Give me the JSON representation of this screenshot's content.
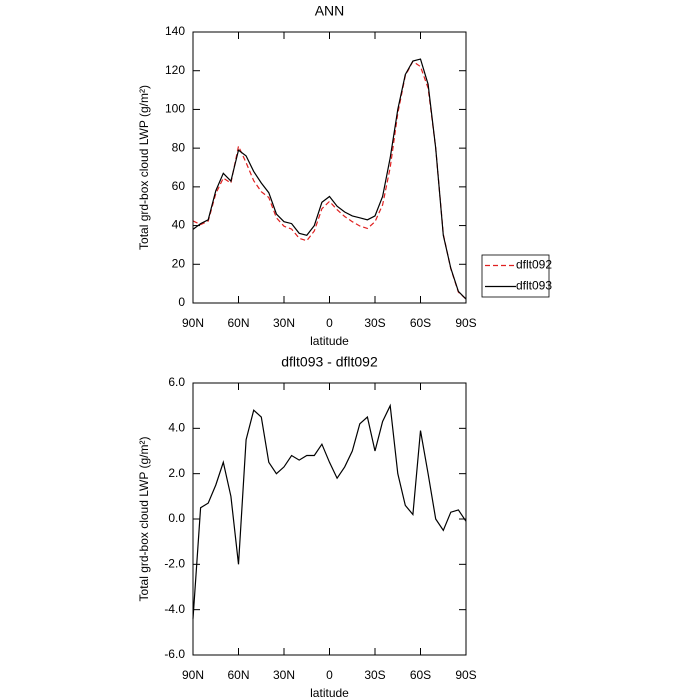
{
  "chart_data": [
    {
      "type": "line",
      "title": "ANN",
      "xlabel": "latitude",
      "ylabel": "Total grd-box cloud LWP (g/m²)",
      "x": [
        90,
        85,
        80,
        75,
        70,
        65,
        60,
        55,
        50,
        45,
        40,
        35,
        30,
        25,
        20,
        15,
        10,
        5,
        0,
        -5,
        -10,
        -15,
        -20,
        -25,
        -30,
        -35,
        -40,
        -45,
        -50,
        -55,
        -60,
        -65,
        -70,
        -75,
        -80,
        -85,
        -90
      ],
      "xlim": [
        90,
        -90
      ],
      "xticks": [
        {
          "value": 90,
          "label": "90N"
        },
        {
          "value": 60,
          "label": "60N"
        },
        {
          "value": 30,
          "label": "30N"
        },
        0,
        {
          "value": -30,
          "label": "30S"
        },
        {
          "value": -60,
          "label": "60S"
        },
        {
          "value": -90,
          "label": "90S"
        }
      ],
      "ylim": [
        0,
        140
      ],
      "yticks": [
        0,
        20,
        40,
        60,
        80,
        100,
        120,
        140
      ],
      "legend": "right",
      "series": [
        {
          "name": "dflt092",
          "color": "#e02020",
          "line_style": "dashed",
          "values": [
            42.4,
            40.5,
            42.3,
            56.5,
            64.5,
            62,
            81,
            72.5,
            63.2,
            57.5,
            54.5,
            44,
            39.7,
            38.2,
            33.4,
            32.2,
            37.2,
            48.7,
            52.5,
            48.2,
            44.7,
            42,
            39.8,
            38.5,
            42,
            50.7,
            70,
            98,
            117.4,
            124.8,
            122.1,
            111,
            80,
            35.5,
            17.7,
            5.6,
            2.1
          ]
        },
        {
          "name": "dflt093",
          "color": "#000000",
          "line_style": "solid",
          "values": [
            38,
            41,
            43,
            58,
            67,
            63,
            79,
            76,
            68,
            62,
            57,
            46,
            42,
            41,
            36,
            35,
            40,
            52,
            55,
            50,
            47,
            45,
            44,
            43,
            45,
            55,
            75,
            100,
            118,
            125,
            126,
            113,
            80,
            35,
            18,
            6,
            2
          ]
        }
      ]
    },
    {
      "type": "line",
      "title": "dflt093 - dflt092",
      "xlabel": "latitude",
      "ylabel": "Total grd-box cloud LWP (g/m²)",
      "x": [
        90,
        85,
        80,
        75,
        70,
        65,
        60,
        55,
        50,
        45,
        40,
        35,
        30,
        25,
        20,
        15,
        10,
        5,
        0,
        -5,
        -10,
        -15,
        -20,
        -25,
        -30,
        -35,
        -40,
        -45,
        -50,
        -55,
        -60,
        -65,
        -70,
        -75,
        -80,
        -85,
        -90
      ],
      "xlim": [
        90,
        -90
      ],
      "xticks": [
        {
          "value": 90,
          "label": "90N"
        },
        {
          "value": 60,
          "label": "60N"
        },
        {
          "value": 30,
          "label": "30N"
        },
        0,
        {
          "value": -30,
          "label": "30S"
        },
        {
          "value": -60,
          "label": "60S"
        },
        {
          "value": -90,
          "label": "90S"
        }
      ],
      "ylim": [
        -6,
        6
      ],
      "yticks": [
        {
          "value": -6,
          "label": "-6.0"
        },
        {
          "value": -4,
          "label": "-4.0"
        },
        {
          "value": -2,
          "label": "-2.0"
        },
        {
          "value": 0,
          "label": "0.0"
        },
        {
          "value": 2,
          "label": "2.0"
        },
        {
          "value": 4,
          "label": "4.0"
        },
        {
          "value": 6,
          "label": "6.0"
        }
      ],
      "series": [
        {
          "color": "#000000",
          "line_style": "solid",
          "values": [
            -4.4,
            0.5,
            0.7,
            1.5,
            2.5,
            1.0,
            -2.0,
            3.5,
            4.8,
            4.5,
            2.5,
            2.0,
            2.3,
            2.8,
            2.6,
            2.8,
            2.8,
            3.3,
            2.5,
            1.8,
            2.3,
            3.0,
            4.2,
            4.5,
            3.0,
            4.3,
            5.0,
            2.0,
            0.6,
            0.2,
            3.9,
            2.0,
            0.0,
            -0.5,
            0.3,
            0.4,
            -0.1
          ]
        }
      ]
    }
  ]
}
